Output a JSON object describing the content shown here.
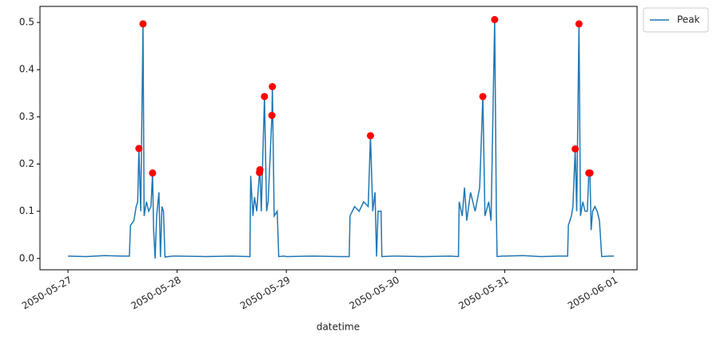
{
  "chart_data": {
    "type": "line",
    "xlabel": "datetime",
    "x": [
      "2050-05-27 00:00",
      "2050-05-27 04:00",
      "2050-05-27 08:00",
      "2050-05-27 12:00",
      "2050-05-27 13:30",
      "2050-05-27 13:45",
      "2050-05-27 14:30",
      "2050-05-27 15:00",
      "2050-05-27 15:20",
      "2050-05-27 15:36",
      "2050-05-27 16:00",
      "2050-05-27 16:30",
      "2050-05-27 16:45",
      "2050-05-27 17:15",
      "2050-05-27 17:45",
      "2050-05-27 18:15",
      "2050-05-27 18:36",
      "2050-05-27 18:50",
      "2050-05-27 19:10",
      "2050-05-27 19:30",
      "2050-05-27 20:00",
      "2050-05-27 20:20",
      "2050-05-27 20:40",
      "2050-05-27 21:00",
      "2050-05-27 21:20",
      "2050-05-27 23:00",
      "2050-05-28 00:00",
      "2050-05-28 06:00",
      "2050-05-28 12:00",
      "2050-05-28 16:00",
      "2050-05-28 16:10",
      "2050-05-28 16:40",
      "2050-05-28 17:00",
      "2050-05-28 17:30",
      "2050-05-28 18:06",
      "2050-05-28 18:12",
      "2050-05-28 18:30",
      "2050-05-28 19:12",
      "2050-05-28 19:40",
      "2050-05-28 20:00",
      "2050-05-28 20:50",
      "2050-05-28 20:56",
      "2050-05-28 21:20",
      "2050-05-28 22:00",
      "2050-05-28 22:20",
      "2050-05-28 23:30",
      "2050-05-29 00:00",
      "2050-05-29 06:00",
      "2050-05-29 12:00",
      "2050-05-29 13:50",
      "2050-05-29 14:00",
      "2050-05-29 15:00",
      "2050-05-29 16:00",
      "2050-05-29 17:00",
      "2050-05-29 18:00",
      "2050-05-29 18:30",
      "2050-05-29 19:00",
      "2050-05-29 19:30",
      "2050-05-29 19:50",
      "2050-05-29 20:10",
      "2050-05-29 20:50",
      "2050-05-29 21:00",
      "2050-05-29 23:30",
      "2050-05-30 00:00",
      "2050-05-30 06:00",
      "2050-05-30 12:00",
      "2050-05-30 13:50",
      "2050-05-30 14:00",
      "2050-05-30 14:40",
      "2050-05-30 15:10",
      "2050-05-30 15:40",
      "2050-05-30 16:30",
      "2050-05-30 17:30",
      "2050-05-30 18:30",
      "2050-05-30 19:12",
      "2050-05-30 19:40",
      "2050-05-30 20:30",
      "2050-05-30 21:00",
      "2050-05-30 21:48",
      "2050-05-30 22:10",
      "2050-05-30 22:20",
      "2050-05-30 23:30",
      "2050-05-31 00:00",
      "2050-05-31 04:00",
      "2050-05-31 08:00",
      "2050-05-31 12:00",
      "2050-05-31 13:50",
      "2050-05-31 14:00",
      "2050-05-31 14:40",
      "2050-05-31 15:00",
      "2050-05-31 15:30",
      "2050-05-31 15:50",
      "2050-05-31 16:20",
      "2050-05-31 16:40",
      "2050-05-31 17:10",
      "2050-05-31 17:40",
      "2050-05-31 18:10",
      "2050-05-31 18:30",
      "2050-05-31 18:45",
      "2050-05-31 19:00",
      "2050-05-31 19:20",
      "2050-05-31 19:50",
      "2050-05-31 20:20",
      "2050-05-31 20:50",
      "2050-05-31 21:20",
      "2050-05-31 23:00",
      "2050-06-01 00:00"
    ],
    "series": [
      {
        "name": "Peak",
        "color": "#1f77b4",
        "values": [
          0.005,
          0.004,
          0.006,
          0.005,
          0.005,
          0.07,
          0.08,
          0.11,
          0.12,
          0.233,
          0.1,
          0.497,
          0.09,
          0.12,
          0.1,
          0.11,
          0.181,
          0.06,
          0.0,
          0.09,
          0.14,
          0.003,
          0.11,
          0.1,
          0.003,
          0.005,
          0.005,
          0.004,
          0.005,
          0.004,
          0.175,
          0.09,
          0.13,
          0.1,
          0.182,
          0.188,
          0.1,
          0.343,
          0.1,
          0.12,
          0.303,
          0.364,
          0.09,
          0.1,
          0.004,
          0.005,
          0.004,
          0.005,
          0.004,
          0.004,
          0.09,
          0.11,
          0.1,
          0.12,
          0.11,
          0.26,
          0.1,
          0.14,
          0.004,
          0.1,
          0.1,
          0.004,
          0.005,
          0.005,
          0.004,
          0.005,
          0.004,
          0.12,
          0.09,
          0.15,
          0.08,
          0.14,
          0.1,
          0.15,
          0.343,
          0.09,
          0.12,
          0.08,
          0.506,
          0.1,
          0.004,
          0.005,
          0.005,
          0.006,
          0.004,
          0.005,
          0.005,
          0.07,
          0.09,
          0.11,
          0.232,
          0.1,
          0.497,
          0.09,
          0.12,
          0.1,
          0.1,
          0.181,
          0.181,
          0.06,
          0.1,
          0.11,
          0.1,
          0.08,
          0.004,
          0.005,
          0.005
        ]
      }
    ],
    "peaks": {
      "color": "#ff0000",
      "x": [
        "2050-05-27 15:36",
        "2050-05-27 16:30",
        "2050-05-27 18:36",
        "2050-05-28 18:06",
        "2050-05-28 18:12",
        "2050-05-28 19:12",
        "2050-05-28 20:50",
        "2050-05-28 20:56",
        "2050-05-29 18:30",
        "2050-05-30 19:12",
        "2050-05-30 21:48",
        "2050-05-31 15:30",
        "2050-05-31 16:20",
        "2050-05-31 18:30",
        "2050-05-31 18:45"
      ],
      "values": [
        0.233,
        0.497,
        0.181,
        0.182,
        0.188,
        0.343,
        0.303,
        0.364,
        0.26,
        0.343,
        0.506,
        0.232,
        0.497,
        0.181,
        0.181
      ]
    },
    "xlim": [
      "2050-05-26 17:51",
      "2050-06-01 05:06"
    ],
    "xticks": [
      "2050-05-27",
      "2050-05-28",
      "2050-05-29",
      "2050-05-30",
      "2050-05-31",
      "2050-06-01"
    ],
    "ylim": [
      -0.024,
      0.534
    ],
    "yticks": [
      {
        "value": 0,
        "label": "0.0"
      },
      {
        "value": 0.1,
        "label": "0.1"
      },
      {
        "value": 0.2,
        "label": "0.2"
      },
      {
        "value": 0.3,
        "label": "0.3"
      },
      {
        "value": 0.4,
        "label": "0.4"
      },
      {
        "value": 0.5,
        "label": "0.5"
      }
    ],
    "grid": false,
    "legend": "outside upper right"
  }
}
